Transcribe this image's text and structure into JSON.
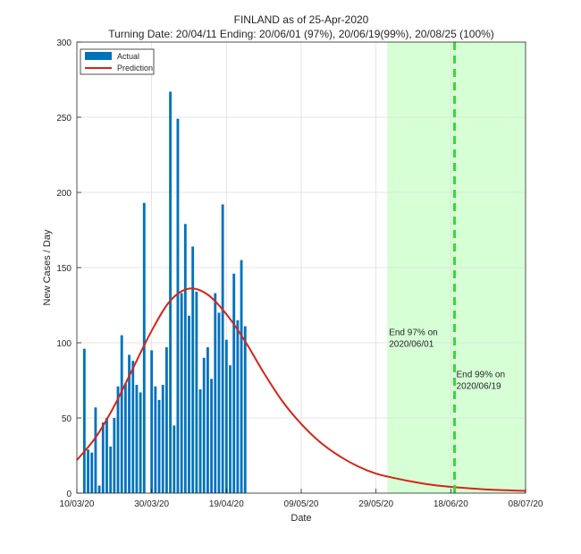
{
  "chart_data": {
    "type": "bar",
    "title": "FINLAND as of 25-Apr-2020",
    "subtitle": "Turning Date: 20/04/11  Ending: 20/06/01 (97%), 20/06/19(99%), 20/08/25 (100%)",
    "xlabel": "Date",
    "ylabel": "New Cases / Day",
    "ylim": [
      0,
      300
    ],
    "yticks": [
      "0",
      "50",
      "100",
      "150",
      "200",
      "250",
      "300"
    ],
    "xticks": [
      "10/03/20",
      "30/03/20",
      "19/04/20",
      "09/05/20",
      "29/05/20",
      "18/06/20",
      "08/07/20"
    ],
    "xlim_dates": [
      "2020-03-10",
      "2020-07-08"
    ],
    "grid": true,
    "legend_position": "top-left",
    "legend": {
      "actual": "Actual",
      "prediction": "Prediction"
    },
    "colors": {
      "actual": "#0072BD",
      "prediction": "#D62418",
      "shade": "#D6FFD6",
      "end_line": "#33DD33"
    },
    "series": [
      {
        "name": "Actual",
        "type": "bar",
        "start_date": "2020-03-12",
        "values": [
          96,
          29,
          27,
          57,
          5,
          47,
          50,
          31,
          50,
          71,
          105,
          73,
          92,
          88,
          72,
          67,
          193,
          0,
          95,
          71,
          62,
          72,
          97,
          267,
          45,
          249,
          133,
          179,
          118,
          164,
          134,
          69,
          90,
          97,
          76,
          133,
          120,
          192,
          102,
          85,
          146,
          115,
          155,
          111
        ]
      },
      {
        "name": "Prediction",
        "type": "line",
        "x": [
          "2020-03-10",
          "2020-03-15",
          "2020-03-20",
          "2020-03-25",
          "2020-03-30",
          "2020-04-04",
          "2020-04-09",
          "2020-04-14",
          "2020-04-19",
          "2020-04-24",
          "2020-04-29",
          "2020-05-04",
          "2020-05-09",
          "2020-05-14",
          "2020-05-19",
          "2020-05-24",
          "2020-05-29",
          "2020-06-03",
          "2020-06-08",
          "2020-06-13",
          "2020-06-18",
          "2020-06-23",
          "2020-06-28",
          "2020-07-03",
          "2020-07-08"
        ],
        "values": [
          22,
          37,
          58,
          83,
          108,
          128,
          136,
          132,
          119,
          101,
          80,
          61,
          46,
          34,
          25,
          18,
          13,
          10,
          7.5,
          5.5,
          4.2,
          3.2,
          2.4,
          1.9,
          1.5
        ]
      }
    ],
    "shaded_region": [
      "2020-06-01",
      "2020-07-08"
    ],
    "vertical_line": "2020-06-19",
    "annotations": [
      {
        "lines": [
          "End 97% on",
          "2020/06/01"
        ],
        "date": "2020-06-01",
        "y": 105
      },
      {
        "lines": [
          "End 99% on",
          "2020/06/19"
        ],
        "date": "2020-06-19",
        "y": 77
      }
    ]
  }
}
